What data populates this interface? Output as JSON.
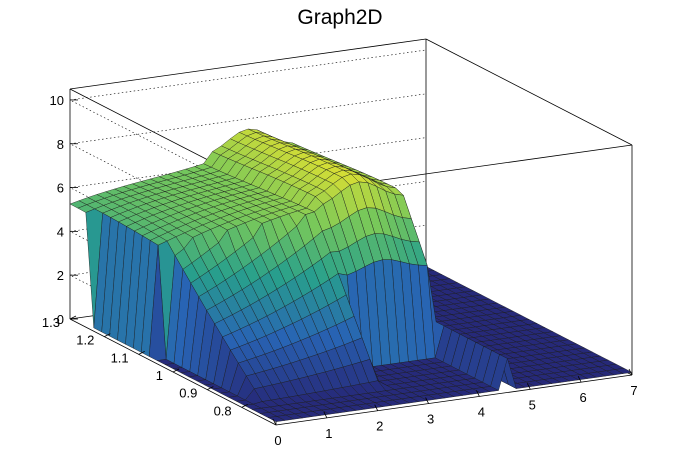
{
  "chart_data": {
    "type": "surface",
    "title": "Graph2D",
    "xlabel": "",
    "ylabel": "",
    "zlabel": "",
    "x_range": [
      0,
      7
    ],
    "y_range": [
      0.7,
      1.3
    ],
    "z_range": [
      0,
      10.5
    ],
    "x_ticks": [
      0,
      1,
      2,
      3,
      4,
      5,
      6,
      7
    ],
    "y_ticks": [
      0.8,
      0.9,
      1,
      1.1,
      1.2,
      1.3
    ],
    "z_ticks": [
      0,
      2,
      4,
      6,
      8,
      10
    ],
    "grid": true,
    "colormap": "viridis",
    "surface_summary": [
      {
        "x": 0,
        "z_high_y": 5.0
      },
      {
        "x": 1,
        "z_high_y": 5.6
      },
      {
        "x": 2,
        "z_high_y": 6.4
      },
      {
        "x": 3,
        "z_high_y": 6.9
      },
      {
        "x": 3.6,
        "z_high_y": 7.3
      },
      {
        "x": 4.3,
        "z_high_y": 6.2
      },
      {
        "x": 4.5,
        "z_high_y": 0.1
      },
      {
        "x": 7,
        "z_high_y": 0.1
      }
    ]
  }
}
